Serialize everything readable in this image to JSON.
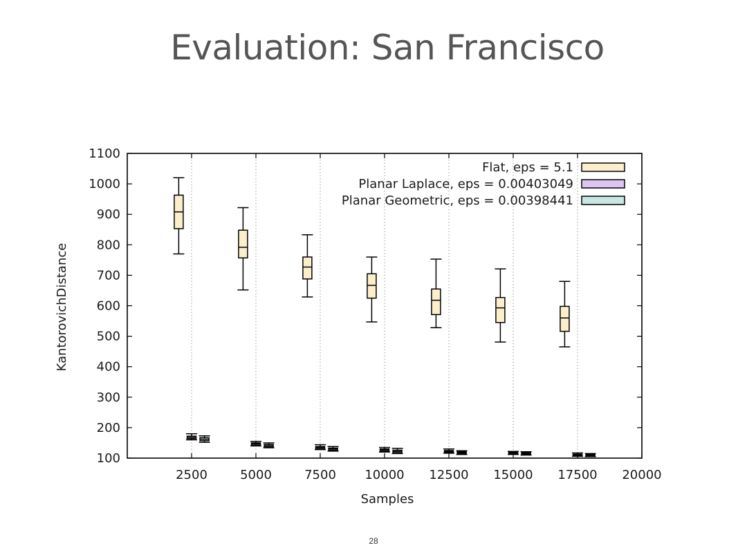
{
  "slide": {
    "title": "Evaluation: San Francisco",
    "page_number": "28"
  },
  "chart_data": {
    "type": "boxplot",
    "xlabel": "Samples",
    "ylabel": "KantorovichDistance",
    "xlim": [
      0,
      20000
    ],
    "ylim": [
      100,
      1100
    ],
    "xticks": [
      2500,
      5000,
      7500,
      10000,
      12500,
      15000,
      17500,
      20000
    ],
    "yticks": [
      100,
      200,
      300,
      400,
      500,
      600,
      700,
      800,
      900,
      1000,
      1100
    ],
    "grid": "vertical dotted lines at x ticks",
    "legend_position": "top-right",
    "series": [
      {
        "name": "Flat, eps = 5.1",
        "color": "#fbeecb",
        "boxes": [
          {
            "x": 2000,
            "min": 770,
            "q1": 853,
            "median": 908,
            "q3": 963,
            "max": 1020
          },
          {
            "x": 4500,
            "min": 652,
            "q1": 757,
            "median": 792,
            "q3": 848,
            "max": 922
          },
          {
            "x": 7000,
            "min": 629,
            "q1": 688,
            "median": 727,
            "q3": 760,
            "max": 833
          },
          {
            "x": 9500,
            "min": 547,
            "q1": 625,
            "median": 667,
            "q3": 705,
            "max": 760
          },
          {
            "x": 12000,
            "min": 528,
            "q1": 571,
            "median": 618,
            "q3": 655,
            "max": 753
          },
          {
            "x": 14500,
            "min": 481,
            "q1": 545,
            "median": 593,
            "q3": 627,
            "max": 721
          },
          {
            "x": 17000,
            "min": 465,
            "q1": 516,
            "median": 560,
            "q3": 598,
            "max": 680
          }
        ]
      },
      {
        "name": "Planar Laplace, eps = 0.00403049",
        "color": "#dcc6f0",
        "boxes": [
          {
            "x": 2500,
            "min": 160,
            "q1": 164,
            "median": 168,
            "q3": 172,
            "max": 180
          },
          {
            "x": 5000,
            "min": 140,
            "q1": 143,
            "median": 147,
            "q3": 150,
            "max": 155
          },
          {
            "x": 7500,
            "min": 128,
            "q1": 131,
            "median": 135,
            "q3": 138,
            "max": 144
          },
          {
            "x": 10000,
            "min": 120,
            "q1": 123,
            "median": 127,
            "q3": 130,
            "max": 135
          },
          {
            "x": 12500,
            "min": 116,
            "q1": 119,
            "median": 122,
            "q3": 125,
            "max": 130
          },
          {
            "x": 15000,
            "min": 112,
            "q1": 114,
            "median": 117,
            "q3": 119,
            "max": 122
          },
          {
            "x": 17500,
            "min": 106,
            "q1": 108,
            "median": 111,
            "q3": 113,
            "max": 117
          }
        ]
      },
      {
        "name": "Planar Geometric, eps = 0.00398441",
        "color": "#c7e8e2",
        "boxes": [
          {
            "x": 3000,
            "min": 152,
            "q1": 157,
            "median": 162,
            "q3": 167,
            "max": 173
          },
          {
            "x": 5500,
            "min": 134,
            "q1": 137,
            "median": 141,
            "q3": 145,
            "max": 150
          },
          {
            "x": 8000,
            "min": 123,
            "q1": 126,
            "median": 130,
            "q3": 133,
            "max": 138
          },
          {
            "x": 10500,
            "min": 115,
            "q1": 118,
            "median": 122,
            "q3": 126,
            "max": 132
          },
          {
            "x": 13000,
            "min": 112,
            "q1": 115,
            "median": 118,
            "q3": 121,
            "max": 124
          },
          {
            "x": 15500,
            "min": 110,
            "q1": 112,
            "median": 115,
            "q3": 118,
            "max": 121
          },
          {
            "x": 18000,
            "min": 105,
            "q1": 107,
            "median": 110,
            "q3": 112,
            "max": 115
          }
        ]
      }
    ]
  }
}
